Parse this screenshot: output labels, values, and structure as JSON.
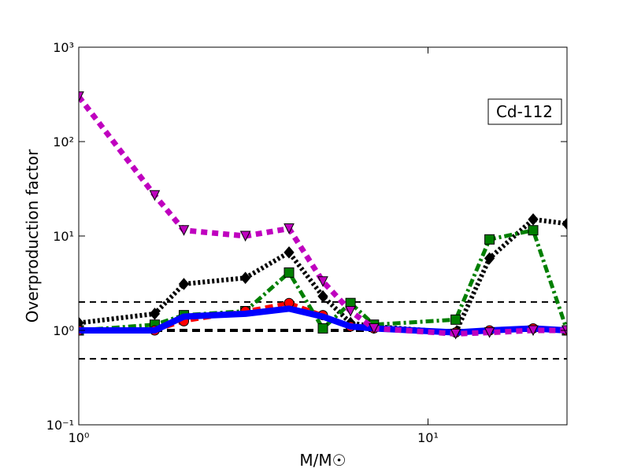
{
  "chart_data": {
    "type": "line",
    "annotation": "Cd-112",
    "xlabel": "M/M☉",
    "ylabel": "Overproduction factor",
    "xscale": "log",
    "yscale": "log",
    "xlim": [
      1,
      25
    ],
    "ylim": [
      0.1,
      1000
    ],
    "xticks": [
      {
        "value": 1,
        "label": "10⁰"
      },
      {
        "value": 10,
        "label": "10¹"
      }
    ],
    "yticks": [
      {
        "value": 0.1,
        "label": "10⁻¹"
      },
      {
        "value": 1,
        "label": "10⁰"
      },
      {
        "value": 10,
        "label": "10¹"
      },
      {
        "value": 100,
        "label": "10²"
      },
      {
        "value": 1000,
        "label": "10³"
      }
    ],
    "hlines": [
      0.5,
      1,
      2
    ],
    "x": [
      1,
      1.65,
      2,
      3,
      4,
      5,
      6,
      7,
      12,
      15,
      20,
      25
    ],
    "series": [
      {
        "color": "#000000",
        "marker": "diamond",
        "dash": "3,3",
        "width": 6,
        "values": [
          1.2,
          1.5,
          3.1,
          3.6,
          6.7,
          2.3,
          1.2,
          1.1,
          0.95,
          5.8,
          15,
          13.5
        ]
      },
      {
        "color": "#007f00",
        "marker": "square",
        "dash": "10,4,3,4",
        "width": 5,
        "values": [
          1.0,
          1.15,
          1.45,
          1.6,
          4.1,
          1.05,
          1.95,
          1.15,
          1.3,
          9.2,
          11.5,
          1.0
        ]
      },
      {
        "color": "#ff0000",
        "marker": "circle",
        "dash": "10,6",
        "width": 5,
        "values": [
          1.0,
          1.0,
          1.25,
          1.6,
          1.95,
          1.45,
          1.1,
          1.05,
          0.95,
          1.0,
          1.05,
          1.0
        ]
      },
      {
        "color": "#0000ff",
        "marker": "none",
        "dash": "none",
        "width": 8,
        "values": [
          1.0,
          1.0,
          1.4,
          1.5,
          1.7,
          1.4,
          1.1,
          1.05,
          0.95,
          1.0,
          1.05,
          1.0
        ]
      },
      {
        "color": "#bf00bf",
        "marker": "triangle-down",
        "dash": "8,6",
        "width": 7,
        "values": [
          300,
          27,
          11.5,
          10,
          12,
          3.3,
          1.6,
          1.05,
          0.92,
          0.95,
          1.0,
          1.0
        ]
      }
    ]
  }
}
